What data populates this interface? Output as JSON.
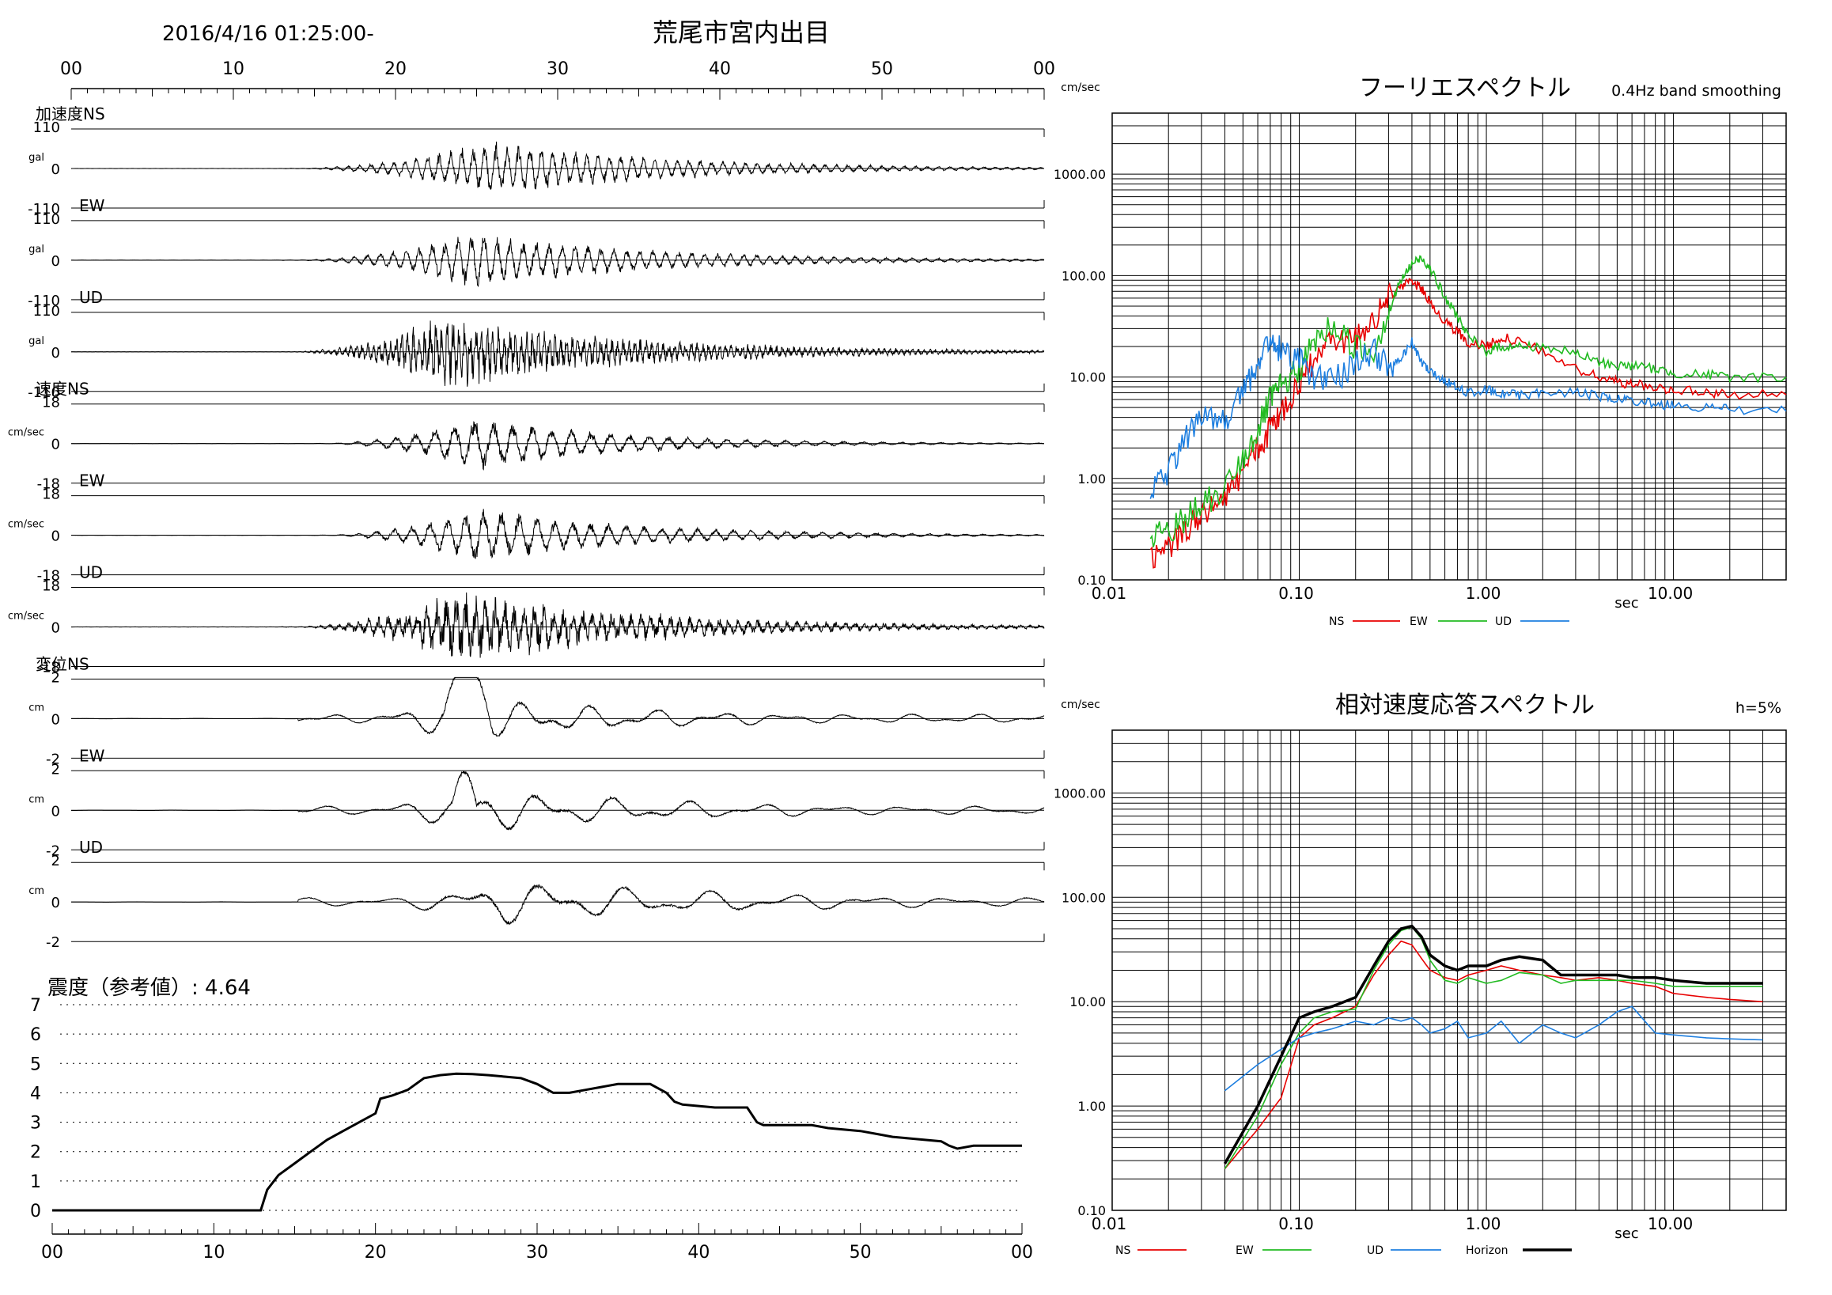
{
  "header": {
    "datetime": "2016/4/16 01:25:00-",
    "station": "荒尾市宮内出目"
  },
  "waveforms": {
    "time_ticks": [
      "00",
      "10",
      "20",
      "30",
      "40",
      "50",
      "00"
    ],
    "panels": [
      {
        "quantity": "加速度",
        "component": "NS",
        "unit": "gal",
        "top_label": "110",
        "zero_label": "0",
        "bottom_label": "-110",
        "amp": 110,
        "style": "acc",
        "onset": 13,
        "peak_time": 26,
        "decay": 11,
        "period": 0.7
      },
      {
        "quantity": "",
        "component": "EW",
        "unit": "gal",
        "top_label": "110",
        "zero_label": "0",
        "bottom_label": "-110",
        "amp": 110,
        "style": "acc",
        "onset": 13,
        "peak_time": 25,
        "decay": 11,
        "period": 0.8
      },
      {
        "quantity": "",
        "component": "UD",
        "unit": "gal",
        "top_label": "110",
        "zero_label": "0",
        "bottom_label": "-110",
        "amp": 110,
        "style": "accud",
        "onset": 13,
        "peak_time": 23,
        "decay": 12,
        "period": 0.35
      },
      {
        "quantity": "速度",
        "component": "NS",
        "unit": "cm/sec",
        "top_label": "18",
        "zero_label": "0",
        "bottom_label": "-18",
        "amp": 18,
        "style": "vel",
        "onset": 15,
        "peak_time": 25,
        "decay": 9,
        "period": 1.2
      },
      {
        "quantity": "",
        "component": "EW",
        "unit": "cm/sec",
        "top_label": "18",
        "zero_label": "0",
        "bottom_label": "-18",
        "amp": 18,
        "style": "vel",
        "onset": 15,
        "peak_time": 25,
        "decay": 10,
        "period": 1.1
      },
      {
        "quantity": "",
        "component": "UD",
        "unit": "cm/sec",
        "top_label": "18",
        "zero_label": "0",
        "bottom_label": "-18",
        "amp": 18,
        "style": "velud",
        "onset": 13,
        "peak_time": 24,
        "decay": 12,
        "period": 0.6
      },
      {
        "quantity": "変位",
        "component": "NS",
        "unit": "cm",
        "top_label": "2",
        "zero_label": "0",
        "bottom_label": "-2",
        "amp": 2,
        "style": "disns",
        "onset": 14,
        "peak_time": 24,
        "decay": 14,
        "period": 4
      },
      {
        "quantity": "",
        "component": "EW",
        "unit": "cm",
        "top_label": "2",
        "zero_label": "0",
        "bottom_label": "-2",
        "amp": 2,
        "style": "disew",
        "onset": 14,
        "peak_time": 25,
        "decay": 15,
        "period": 4.5
      },
      {
        "quantity": "",
        "component": "UD",
        "unit": "cm",
        "top_label": "2",
        "zero_label": "0",
        "bottom_label": "-2",
        "amp": 2,
        "style": "disud",
        "onset": 14,
        "peak_time": 27,
        "decay": 18,
        "period": 5
      }
    ]
  },
  "intensity": {
    "title": "震度（参考値）: 4.64",
    "y_ticks": [
      "7",
      "6",
      "5",
      "4",
      "3",
      "2",
      "1",
      "0"
    ],
    "x_ticks": [
      "00",
      "10",
      "20",
      "30",
      "40",
      "50",
      "00"
    ],
    "series": [
      [
        0,
        0
      ],
      [
        12.9,
        0
      ],
      [
        13.3,
        0.7
      ],
      [
        14,
        1.2
      ],
      [
        15,
        1.6
      ],
      [
        16,
        2.0
      ],
      [
        17,
        2.4
      ],
      [
        18,
        2.7
      ],
      [
        19,
        3.0
      ],
      [
        20,
        3.3
      ],
      [
        20.3,
        3.8
      ],
      [
        21,
        3.9
      ],
      [
        22,
        4.1
      ],
      [
        23,
        4.5
      ],
      [
        24,
        4.6
      ],
      [
        25,
        4.65
      ],
      [
        26,
        4.64
      ],
      [
        27,
        4.6
      ],
      [
        28,
        4.55
      ],
      [
        29,
        4.5
      ],
      [
        30,
        4.3
      ],
      [
        31,
        4.0
      ],
      [
        32,
        4.0
      ],
      [
        33,
        4.1
      ],
      [
        34,
        4.2
      ],
      [
        35,
        4.3
      ],
      [
        36,
        4.3
      ],
      [
        37,
        4.3
      ],
      [
        38,
        4.0
      ],
      [
        38.5,
        3.7
      ],
      [
        39,
        3.6
      ],
      [
        40,
        3.55
      ],
      [
        41,
        3.5
      ],
      [
        42,
        3.5
      ],
      [
        43,
        3.5
      ],
      [
        43.6,
        3.0
      ],
      [
        44,
        2.9
      ],
      [
        45,
        2.9
      ],
      [
        46,
        2.9
      ],
      [
        47,
        2.9
      ],
      [
        48,
        2.8
      ],
      [
        50,
        2.7
      ],
      [
        51,
        2.6
      ],
      [
        52,
        2.5
      ],
      [
        53,
        2.45
      ],
      [
        54,
        2.4
      ],
      [
        55,
        2.35
      ],
      [
        55.5,
        2.2
      ],
      [
        56,
        2.1
      ],
      [
        57,
        2.2
      ],
      [
        58,
        2.2
      ],
      [
        60,
        2.2
      ]
    ]
  },
  "chart_data": [
    {
      "type": "line",
      "title": "フーリエスペクトル",
      "subtitle": "0.4Hz band smoothing",
      "ylabel": "cm/sec",
      "xlabel": "sec",
      "x_scale": "log",
      "y_scale": "log",
      "xlim": [
        0.01,
        40
      ],
      "ylim": [
        0.1,
        4000
      ],
      "x_tick_labels": [
        "0.01",
        "0.10",
        "1.00",
        "10.00"
      ],
      "y_tick_labels": [
        "0.10",
        "1.00",
        "10.00",
        "100.00",
        "1000.00"
      ],
      "legend": [
        "NS",
        "EW",
        "UD"
      ],
      "series": [
        {
          "name": "NS",
          "color": "#e80000",
          "x": [
            0.016,
            0.02,
            0.025,
            0.03,
            0.04,
            0.05,
            0.06,
            0.07,
            0.08,
            0.1,
            0.12,
            0.15,
            0.2,
            0.25,
            0.3,
            0.35,
            0.4,
            0.45,
            0.5,
            0.6,
            0.7,
            0.8,
            1.0,
            1.2,
            1.5,
            2.0,
            3.0,
            4.0,
            5.0,
            6.0,
            8.0,
            10.0,
            15.0,
            20.0,
            40.0
          ],
          "y": [
            0.15,
            0.22,
            0.3,
            0.45,
            0.65,
            1.2,
            2.0,
            3.0,
            4.5,
            9.0,
            14,
            22,
            25,
            35,
            60,
            80,
            85,
            75,
            55,
            35,
            28,
            22,
            20,
            25,
            22,
            18,
            12,
            10,
            9,
            8.5,
            8,
            7.5,
            7,
            6.8,
            6.7
          ]
        },
        {
          "name": "EW",
          "color": "#22bb22",
          "x": [
            0.016,
            0.02,
            0.025,
            0.03,
            0.04,
            0.05,
            0.06,
            0.07,
            0.08,
            0.1,
            0.12,
            0.15,
            0.2,
            0.25,
            0.3,
            0.35,
            0.4,
            0.45,
            0.5,
            0.6,
            0.7,
            0.8,
            1.0,
            1.2,
            1.5,
            2.0,
            3.0,
            4.0,
            5.0,
            6.0,
            8.0,
            10.0,
            15.0,
            20.0,
            40.0
          ],
          "y": [
            0.25,
            0.3,
            0.4,
            0.55,
            0.8,
            1.5,
            3.0,
            6.0,
            8.0,
            12,
            22,
            32,
            20,
            18,
            45,
            90,
            130,
            150,
            120,
            60,
            40,
            25,
            18,
            20,
            20,
            20,
            17,
            14,
            13,
            13,
            12,
            11,
            10.5,
            10,
            10
          ]
        },
        {
          "name": "UD",
          "color": "#1e7fe0",
          "x": [
            0.016,
            0.02,
            0.025,
            0.03,
            0.04,
            0.05,
            0.06,
            0.07,
            0.08,
            0.1,
            0.12,
            0.15,
            0.2,
            0.25,
            0.3,
            0.35,
            0.4,
            0.45,
            0.5,
            0.6,
            0.7,
            0.8,
            1.0,
            1.2,
            1.5,
            2.0,
            3.0,
            4.0,
            5.0,
            6.0,
            8.0,
            10.0,
            15.0,
            20.0,
            40.0
          ],
          "y": [
            0.8,
            1.2,
            2.5,
            4.5,
            3.5,
            8,
            12,
            25,
            18,
            15,
            10,
            9,
            14,
            18,
            12,
            15,
            22,
            14,
            11,
            9,
            8,
            7,
            7.5,
            7,
            6.5,
            7,
            7,
            6.5,
            6,
            5.8,
            5.5,
            5.2,
            5,
            4.8,
            4.6
          ]
        }
      ]
    },
    {
      "type": "line",
      "title": "相対速度応答スペクトル",
      "subtitle": "h=5%",
      "ylabel": "cm/sec",
      "xlabel": "sec",
      "x_scale": "log",
      "y_scale": "log",
      "xlim": [
        0.01,
        40
      ],
      "ylim": [
        0.1,
        4000
      ],
      "x_tick_labels": [
        "0.01",
        "0.10",
        "1.00",
        "10.00"
      ],
      "y_tick_labels": [
        "0.10",
        "1.00",
        "10.00",
        "100.00",
        "1000.00"
      ],
      "legend": [
        "NS",
        "EW",
        "UD",
        "Horizon"
      ],
      "series": [
        {
          "name": "NS",
          "color": "#e80000",
          "x": [
            0.04,
            0.06,
            0.08,
            0.1,
            0.12,
            0.15,
            0.2,
            0.25,
            0.3,
            0.35,
            0.4,
            0.45,
            0.5,
            0.6,
            0.7,
            0.8,
            1.0,
            1.2,
            1.5,
            2.0,
            2.5,
            3.0,
            4.0,
            5.0,
            6.0,
            8.0,
            10.0,
            15.0,
            20.0,
            30.0
          ],
          "y": [
            0.25,
            0.6,
            1.2,
            4.5,
            6,
            7,
            9,
            18,
            28,
            38,
            35,
            26,
            20,
            17,
            16,
            18,
            20,
            22,
            20,
            18,
            17,
            16,
            17,
            16,
            15,
            14,
            12,
            11,
            10.5,
            10
          ]
        },
        {
          "name": "EW",
          "color": "#22bb22",
          "x": [
            0.04,
            0.06,
            0.08,
            0.1,
            0.12,
            0.15,
            0.2,
            0.25,
            0.3,
            0.35,
            0.4,
            0.45,
            0.5,
            0.6,
            0.7,
            0.8,
            1.0,
            1.2,
            1.5,
            2.0,
            2.5,
            3.0,
            4.0,
            5.0,
            6.0,
            8.0,
            10.0,
            15.0,
            20.0,
            30.0
          ],
          "y": [
            0.25,
            0.8,
            2.5,
            5,
            7,
            8,
            8.5,
            20,
            35,
            48,
            52,
            40,
            25,
            16,
            15,
            17,
            15,
            16,
            19,
            18,
            15,
            16,
            16,
            16,
            16,
            15,
            14,
            14,
            14,
            14
          ]
        },
        {
          "name": "UD",
          "color": "#1e7fe0",
          "x": [
            0.04,
            0.06,
            0.08,
            0.1,
            0.12,
            0.15,
            0.2,
            0.25,
            0.3,
            0.35,
            0.4,
            0.45,
            0.5,
            0.6,
            0.7,
            0.8,
            1.0,
            1.2,
            1.5,
            2.0,
            2.5,
            3.0,
            4.0,
            5.0,
            6.0,
            8.0,
            10.0,
            15.0,
            20.0,
            30.0
          ],
          "y": [
            1.4,
            2.5,
            3.5,
            4.5,
            5,
            5.5,
            6.5,
            6,
            7,
            6.5,
            7,
            6,
            5,
            5.5,
            6.5,
            4.5,
            5,
            6.5,
            4,
            6,
            5,
            4.5,
            6,
            8,
            9,
            5,
            4.8,
            4.5,
            4.4,
            4.3
          ]
        },
        {
          "name": "Horizon",
          "color": "#000000",
          "x": [
            0.04,
            0.06,
            0.08,
            0.1,
            0.12,
            0.15,
            0.2,
            0.25,
            0.3,
            0.35,
            0.4,
            0.45,
            0.5,
            0.6,
            0.7,
            0.8,
            1.0,
            1.2,
            1.5,
            2.0,
            2.5,
            3.0,
            4.0,
            5.0,
            6.0,
            8.0,
            10.0,
            15.0,
            20.0,
            30.0
          ],
          "y": [
            0.28,
            1.0,
            3.0,
            7,
            8,
            9,
            11,
            22,
            38,
            50,
            53,
            42,
            28,
            22,
            20,
            22,
            22,
            25,
            27,
            25,
            18,
            18,
            18,
            18,
            17,
            17,
            16,
            15,
            15,
            15
          ]
        }
      ]
    }
  ]
}
